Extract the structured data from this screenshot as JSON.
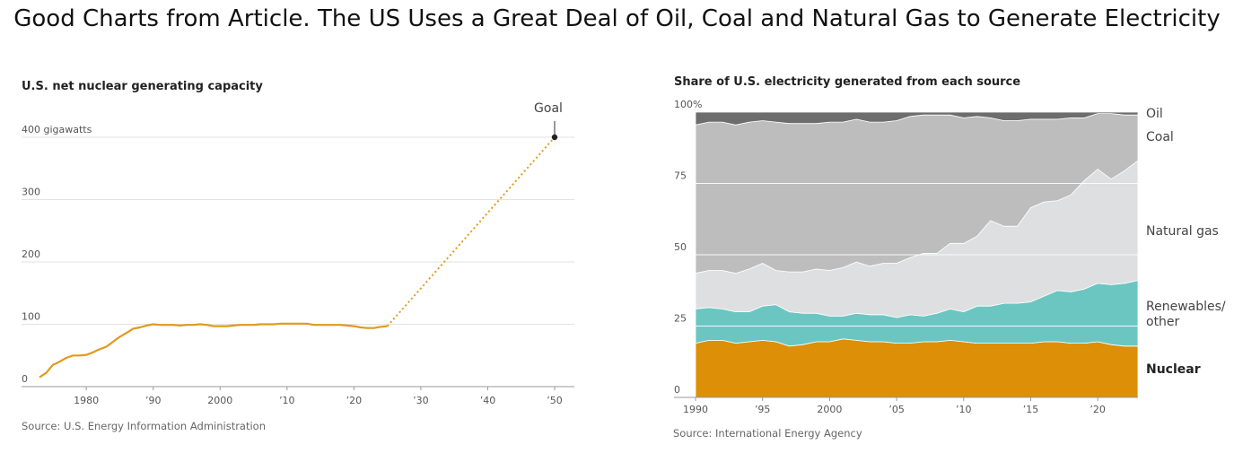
{
  "page": {
    "title": "Good Charts from Article.  The US Uses a Great Deal of Oil, Coal and Natural Gas to Generate Electricity"
  },
  "chart_data": [
    {
      "type": "line",
      "title": "U.S. net nuclear generating capacity",
      "ylim": [
        0,
        400
      ],
      "xlim": [
        1972,
        2050
      ],
      "y_ticks": [
        {
          "value": 0,
          "label": "0"
        },
        {
          "value": 100,
          "label": "100"
        },
        {
          "value": 200,
          "label": "200"
        },
        {
          "value": 300,
          "label": "300"
        },
        {
          "value": 400,
          "label": "400 gigawatts"
        }
      ],
      "x_ticks": [
        {
          "value": 1980,
          "label": "1980"
        },
        {
          "value": 1990,
          "label": "’90"
        },
        {
          "value": 2000,
          "label": "2000"
        },
        {
          "value": 2010,
          "label": "’10"
        },
        {
          "value": 2020,
          "label": "’20"
        },
        {
          "value": 2030,
          "label": "’30"
        },
        {
          "value": 2040,
          "label": "’40"
        },
        {
          "value": 2050,
          "label": "’50"
        }
      ],
      "series": [
        {
          "line_color": "#e09a1c",
          "x": [
            1973,
            1974,
            1975,
            1976,
            1977,
            1978,
            1979,
            1980,
            1981,
            1982,
            1983,
            1984,
            1985,
            1986,
            1987,
            1988,
            1989,
            1990,
            1991,
            1992,
            1993,
            1994,
            1995,
            1996,
            1997,
            1998,
            1999,
            2000,
            2001,
            2002,
            2003,
            2004,
            2005,
            2006,
            2007,
            2008,
            2009,
            2010,
            2011,
            2012,
            2013,
            2014,
            2015,
            2016,
            2017,
            2018,
            2019,
            2020,
            2021,
            2022,
            2023,
            2024,
            2025
          ],
          "y": [
            15,
            22,
            35,
            40,
            46,
            50,
            50,
            51,
            55,
            60,
            64,
            72,
            80,
            86,
            93,
            95,
            98,
            100,
            99,
            99,
            99,
            98,
            99,
            99,
            100,
            99,
            97,
            97,
            97,
            98,
            99,
            99,
            99,
            100,
            100,
            100,
            101,
            101,
            101,
            101,
            101,
            99,
            99,
            99,
            99,
            99,
            98,
            97,
            95,
            94,
            94,
            96,
            97
          ]
        }
      ],
      "goal": {
        "label": "Goal",
        "x": 2050,
        "y": 400,
        "from_x": 2025,
        "from_y": 97
      },
      "source": "Source: U.S. Energy Information Administration"
    },
    {
      "type": "area",
      "stacked": true,
      "title": "Share of U.S. electricity generated from each source",
      "ylim": [
        0,
        100
      ],
      "xlim": [
        1990,
        2023
      ],
      "y_ticks": [
        {
          "value": 0,
          "label": "0"
        },
        {
          "value": 25,
          "label": "25"
        },
        {
          "value": 50,
          "label": "50"
        },
        {
          "value": 75,
          "label": "75"
        },
        {
          "value": 100,
          "label": "100%"
        }
      ],
      "x_ticks": [
        {
          "value": 1990,
          "label": "1990"
        },
        {
          "value": 1995,
          "label": "’95"
        },
        {
          "value": 2000,
          "label": "2000"
        },
        {
          "value": 2005,
          "label": "’05"
        },
        {
          "value": 2010,
          "label": "’10"
        },
        {
          "value": 2015,
          "label": "’15"
        },
        {
          "value": 2020,
          "label": "’20"
        }
      ],
      "x": [
        1990,
        1991,
        1992,
        1993,
        1994,
        1995,
        1996,
        1997,
        1998,
        1999,
        2000,
        2001,
        2002,
        2003,
        2004,
        2005,
        2006,
        2007,
        2008,
        2009,
        2010,
        2011,
        2012,
        2013,
        2014,
        2015,
        2016,
        2017,
        2018,
        2019,
        2020,
        2021,
        2022,
        2023
      ],
      "series": [
        {
          "name": "Nuclear",
          "color": "#dc8f07",
          "values": [
            19,
            20,
            20,
            19,
            19.5,
            20,
            19.5,
            18,
            18.5,
            19.5,
            19.5,
            20.5,
            20,
            19.5,
            19.5,
            19,
            19,
            19.5,
            19.5,
            20,
            19.5,
            19,
            19,
            19,
            19,
            19,
            19.5,
            19.5,
            19,
            19,
            19.5,
            18.5,
            18,
            18
          ]
        },
        {
          "name": "Renewables/ other",
          "color": "#6bc6c2",
          "values": [
            12,
            11.5,
            11,
            11,
            10.5,
            12,
            13,
            12,
            11,
            10,
            9,
            8,
            9.5,
            9.5,
            9.5,
            9,
            10,
            9,
            10,
            11,
            10.5,
            13,
            13,
            14,
            14,
            14.5,
            16,
            18,
            18,
            19,
            20.5,
            21,
            22,
            23
          ]
        },
        {
          "name": "Natural gas",
          "color": "#dedfe0",
          "values": [
            12.5,
            13,
            13.5,
            13.5,
            15,
            15,
            12,
            14,
            14.5,
            15.5,
            16,
            17,
            18,
            17,
            18,
            19,
            20,
            22,
            21,
            23,
            24,
            24.5,
            30,
            27,
            27,
            33,
            33,
            31.5,
            34,
            38,
            40,
            37,
            39.5,
            42
          ]
        },
        {
          "name": "Coal",
          "color": "#bdbdbd",
          "values": [
            52,
            52,
            52,
            52,
            51.5,
            50,
            52,
            52,
            52,
            51,
            52,
            51,
            50,
            50.5,
            49.5,
            50,
            49.5,
            48.5,
            48.5,
            45,
            44,
            42,
            36,
            37,
            37,
            31,
            29,
            28.5,
            27,
            22,
            19.5,
            23,
            19.5,
            16
          ]
        },
        {
          "name": "Oil",
          "color": "#6d6d6d",
          "values": [
            4.5,
            3.5,
            3.5,
            4.5,
            3.5,
            3,
            3.5,
            4,
            4.5,
            4,
            3.5,
            3.5,
            2.5,
            3.5,
            3.5,
            3,
            1.5,
            1.5,
            1,
            1,
            1,
            1,
            1,
            1,
            1,
            1,
            1,
            1,
            1,
            1,
            1,
            0.5,
            0.5,
            1
          ]
        }
      ],
      "source": "Source: International Energy Agency"
    }
  ]
}
